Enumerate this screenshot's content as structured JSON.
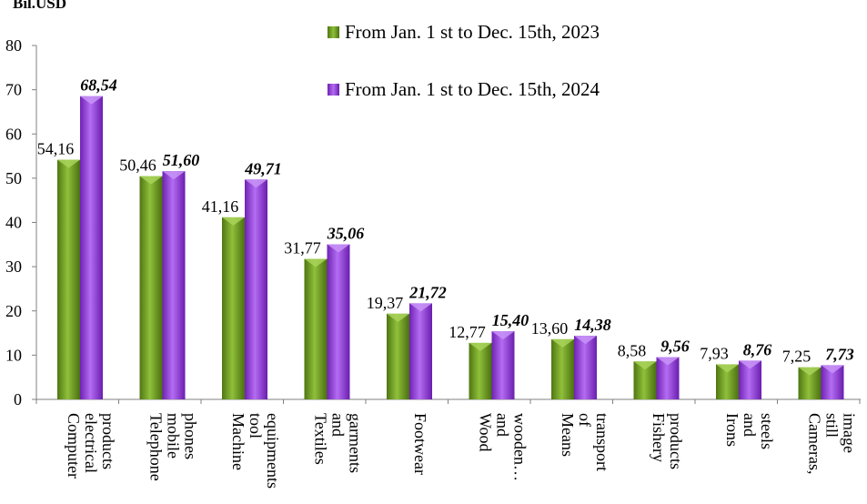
{
  "chart_data": {
    "type": "bar",
    "unit_label": "Bil.USD",
    "ylim": [
      0,
      80
    ],
    "yticks": [
      0,
      10,
      20,
      30,
      40,
      50,
      60,
      70,
      80
    ],
    "grid": false,
    "legend_position": "top-center",
    "categories": [
      [
        "Computer",
        "electrical",
        "products"
      ],
      [
        "Telephone",
        "mobile",
        "phones"
      ],
      [
        "Machine",
        "tool",
        "equipments"
      ],
      [
        "Textiles",
        "and",
        "garments"
      ],
      [
        "Footwear"
      ],
      [
        "Wood",
        "and",
        "wooden…"
      ],
      [
        "Means",
        "of",
        "transport"
      ],
      [
        "Fishery",
        "products"
      ],
      [
        "Irons",
        "and",
        "steels"
      ],
      [
        "Cameras,",
        "still",
        "image"
      ]
    ],
    "series": [
      {
        "name": "From Jan. 1 st to Dec. 15th, 2023",
        "color": "#6b9a1e",
        "values": [
          54.16,
          50.46,
          41.16,
          31.77,
          19.37,
          12.77,
          13.6,
          8.58,
          7.93,
          7.25
        ],
        "labels": [
          "54,16",
          "50,46",
          "41,16",
          "31,77",
          "19,37",
          "12,77",
          "13,60",
          "8,58",
          "7,93",
          "7,25"
        ]
      },
      {
        "name": "From Jan. 1 st to Dec. 15th, 2024",
        "color": "#9a3de0",
        "values": [
          68.54,
          51.6,
          49.71,
          35.06,
          21.72,
          15.4,
          14.38,
          9.56,
          8.76,
          7.73
        ],
        "labels": [
          "68,54",
          "51,60",
          "49,71",
          "35,06",
          "21,72",
          "15,40",
          "14,38",
          "9,56",
          "8,76",
          "7,73"
        ]
      }
    ]
  }
}
